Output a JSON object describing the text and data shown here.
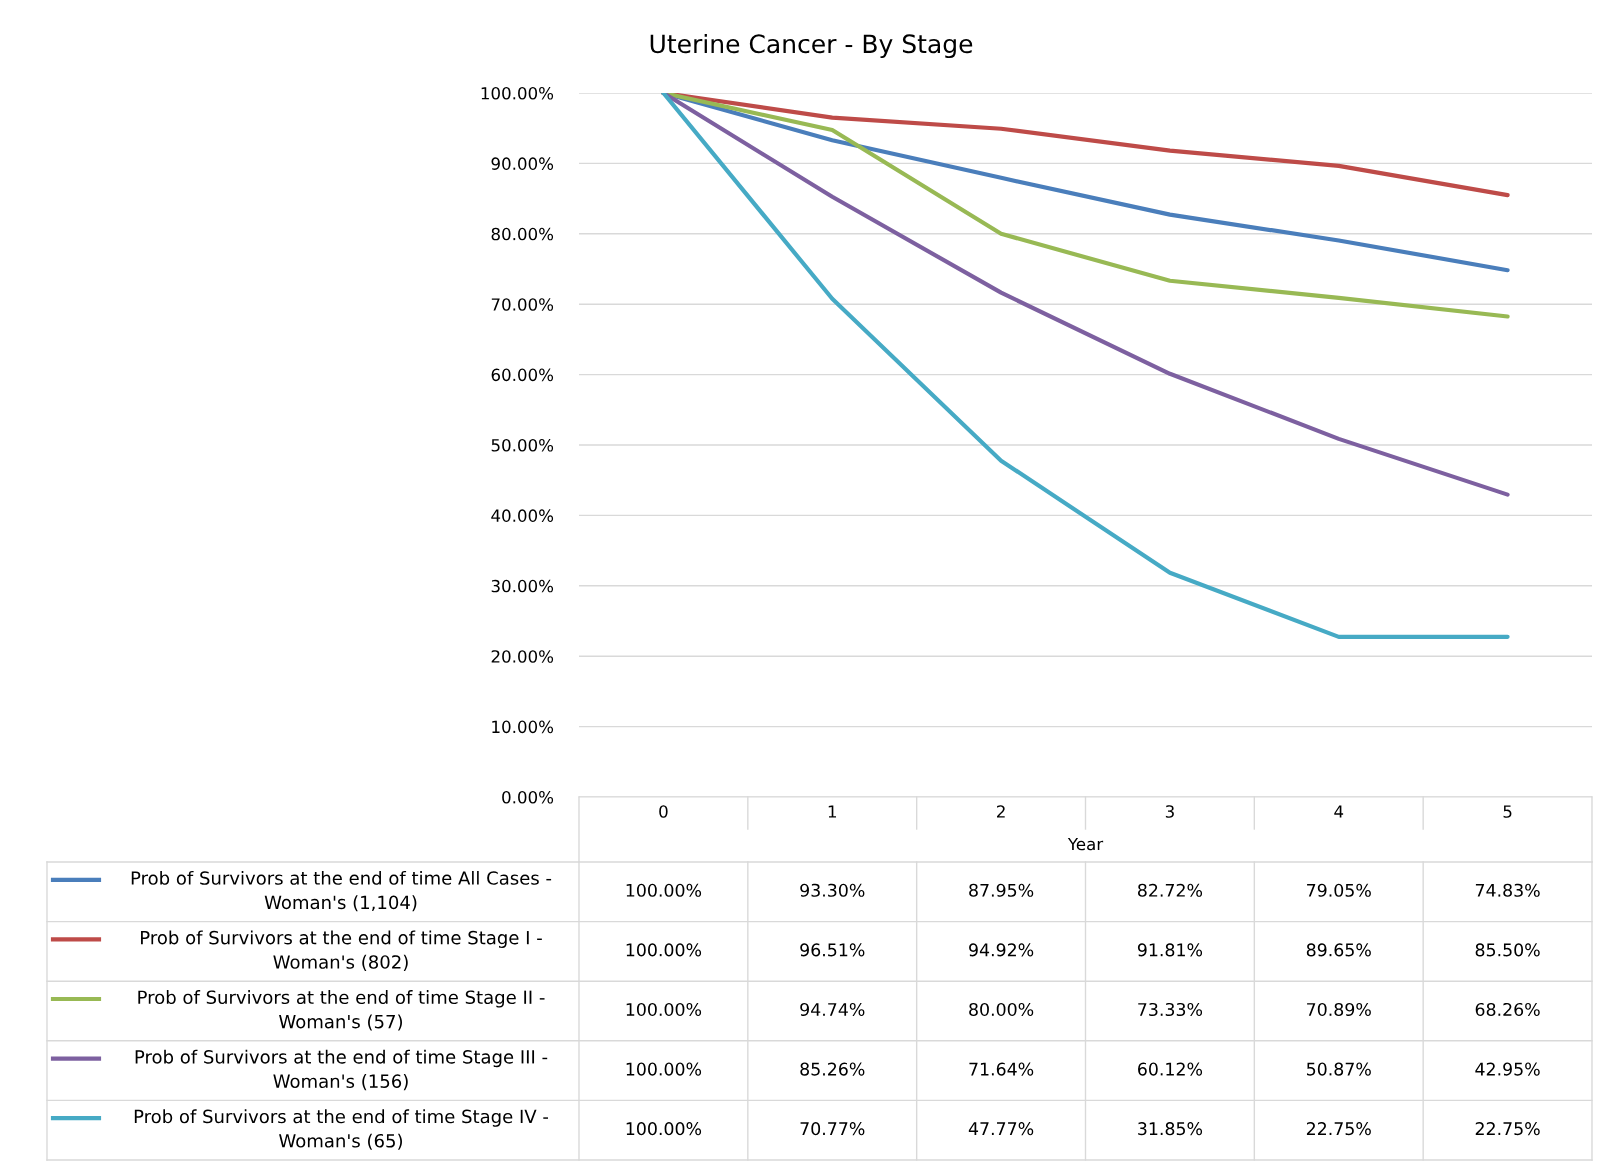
{
  "chart_data": {
    "type": "line",
    "title": "Uterine Cancer - By Stage",
    "xlabel": "Year",
    "categories": [
      "0",
      "1",
      "2",
      "3",
      "4",
      "5"
    ],
    "ylim": [
      0,
      100
    ],
    "yticks": [
      {
        "value": 0,
        "label": "0.00%"
      },
      {
        "value": 10,
        "label": "10.00%"
      },
      {
        "value": 20,
        "label": "20.00%"
      },
      {
        "value": 30,
        "label": "30.00%"
      },
      {
        "value": 40,
        "label": "40.00%"
      },
      {
        "value": 50,
        "label": "50.00%"
      },
      {
        "value": 60,
        "label": "60.00%"
      },
      {
        "value": 70,
        "label": "70.00%"
      },
      {
        "value": 80,
        "label": "80.00%"
      },
      {
        "value": 90,
        "label": "90.00%"
      },
      {
        "value": 100,
        "label": "100.00%"
      }
    ],
    "grid": "y",
    "legend": "bottom",
    "marker": "none",
    "line_style": "solid",
    "series": [
      {
        "name": "Prob of Survivors at the end of time All Cases - Woman's (1,104)",
        "color": "#4a7ebb",
        "values": [
          100.0,
          93.3,
          87.95,
          82.72,
          79.05,
          74.83
        ],
        "value_labels": [
          "100.00%",
          "93.30%",
          "87.95%",
          "82.72%",
          "79.05%",
          "74.83%"
        ]
      },
      {
        "name": "Prob of Survivors at the end of time Stage I - Woman's (802)",
        "color": "#be4b48",
        "values": [
          100.0,
          96.51,
          94.92,
          91.81,
          89.65,
          85.5
        ],
        "value_labels": [
          "100.00%",
          "96.51%",
          "94.92%",
          "91.81%",
          "89.65%",
          "85.50%"
        ]
      },
      {
        "name": "Prob of Survivors at the end of time Stage II - Woman's (57)",
        "color": "#98b954",
        "values": [
          100.0,
          94.74,
          80.0,
          73.33,
          70.89,
          68.26
        ],
        "value_labels": [
          "100.00%",
          "94.74%",
          "80.00%",
          "73.33%",
          "70.89%",
          "68.26%"
        ]
      },
      {
        "name": "Prob of Survivors at the end of time Stage III - Woman's (156)",
        "color": "#7d60a0",
        "values": [
          100.0,
          85.26,
          71.64,
          60.12,
          50.87,
          42.95
        ],
        "value_labels": [
          "100.00%",
          "85.26%",
          "71.64%",
          "60.12%",
          "50.87%",
          "42.95%"
        ]
      },
      {
        "name": "Prob of Survivors at the end of time Stage IV - Woman's (65)",
        "color": "#46aac5",
        "values": [
          100.0,
          70.77,
          47.77,
          31.85,
          22.75,
          22.75
        ],
        "value_labels": [
          "100.00%",
          "70.77%",
          "47.77%",
          "31.85%",
          "22.75%",
          "22.75%"
        ]
      }
    ]
  }
}
